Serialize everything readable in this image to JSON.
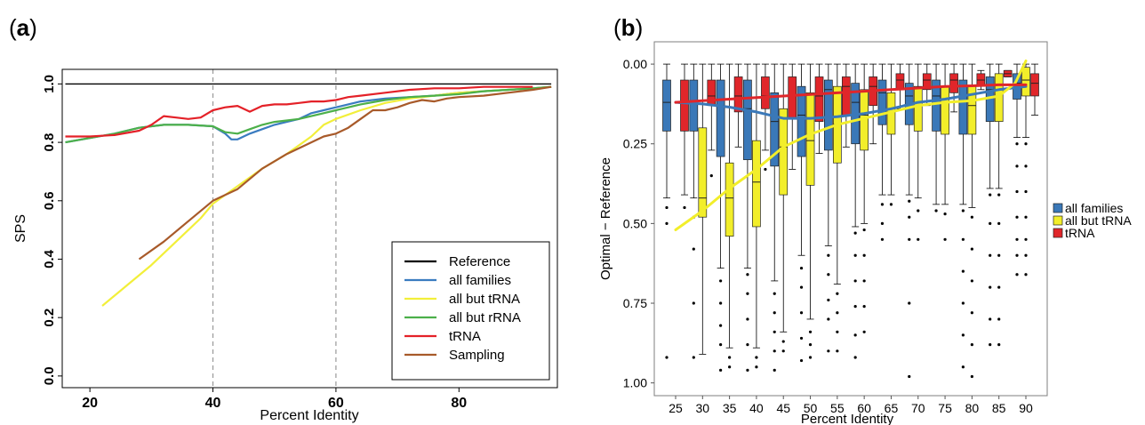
{
  "panels": [
    {
      "letter": "a",
      "open": "(",
      "close": ")"
    },
    {
      "letter": "b",
      "open": "(",
      "close": ")"
    }
  ],
  "colors": {
    "reference": "#000000",
    "all_families": "#3a7cc0",
    "all_but_trna": "#f2ef3a",
    "all_but_rrna": "#4cb04a",
    "trna": "#e42128",
    "sampling": "#a85a2a",
    "box_blue": "#3a78b8",
    "box_yellow": "#f2ee2a",
    "box_red": "#e0262a",
    "vline": "#999999"
  },
  "chart_data": [
    {
      "type": "line",
      "panel": "a",
      "xlabel": "Percent Identity",
      "ylabel": "SPS",
      "xlim": [
        15.5,
        96
      ],
      "ylim": [
        -0.04,
        1.05
      ],
      "xticks": [
        20,
        40,
        60,
        80
      ],
      "yticks": [
        0.0,
        0.2,
        0.4,
        0.6,
        0.8,
        1.0
      ],
      "ytick_labels": [
        "0.0",
        "0.2",
        "0.4",
        "0.6",
        "0.8",
        "1.0"
      ],
      "vlines": [
        40,
        60
      ],
      "legend_position": "bottom-right",
      "series": [
        {
          "name": "Reference",
          "color_key": "reference",
          "x": [
            16,
            95
          ],
          "y": [
            1.0,
            1.0
          ]
        },
        {
          "name": "all families",
          "color_key": "all_families",
          "x": [
            16,
            20,
            24,
            28,
            32,
            36,
            40,
            42,
            43,
            44,
            46,
            48,
            50,
            52,
            54,
            56,
            58,
            60,
            64,
            68,
            72,
            76,
            80,
            84,
            88,
            92,
            95
          ],
          "y": [
            0.8,
            0.815,
            0.83,
            0.85,
            0.86,
            0.86,
            0.855,
            0.83,
            0.81,
            0.81,
            0.83,
            0.845,
            0.86,
            0.87,
            0.88,
            0.9,
            0.91,
            0.92,
            0.94,
            0.95,
            0.955,
            0.96,
            0.97,
            0.975,
            0.98,
            0.985,
            0.99
          ]
        },
        {
          "name": "all but tRNA",
          "color_key": "all_but_trna",
          "x": [
            22,
            26,
            30,
            34,
            38,
            40,
            44,
            48,
            52,
            56,
            58,
            60,
            64,
            68,
            72,
            76,
            80,
            84,
            88,
            92,
            95
          ],
          "y": [
            0.24,
            0.31,
            0.38,
            0.46,
            0.54,
            0.59,
            0.65,
            0.71,
            0.76,
            0.82,
            0.86,
            0.88,
            0.91,
            0.935,
            0.95,
            0.96,
            0.97,
            0.975,
            0.98,
            0.985,
            0.99
          ]
        },
        {
          "name": "all but rRNA",
          "color_key": "all_but_rrna",
          "x": [
            16,
            20,
            24,
            28,
            32,
            36,
            40,
            42,
            44,
            46,
            48,
            50,
            52,
            54,
            56,
            58,
            60,
            64,
            68,
            72,
            76,
            80,
            84,
            88,
            92,
            95
          ],
          "y": [
            0.8,
            0.815,
            0.83,
            0.85,
            0.86,
            0.86,
            0.855,
            0.835,
            0.83,
            0.845,
            0.86,
            0.87,
            0.875,
            0.88,
            0.89,
            0.9,
            0.91,
            0.93,
            0.945,
            0.955,
            0.96,
            0.965,
            0.975,
            0.98,
            0.985,
            0.99
          ]
        },
        {
          "name": "tRNA",
          "color_key": "trna",
          "x": [
            16,
            20,
            24,
            28,
            30,
            32,
            34,
            36,
            38,
            40,
            42,
            44,
            46,
            48,
            50,
            52,
            54,
            56,
            58,
            60,
            62,
            64,
            68,
            72,
            76,
            80,
            84,
            88,
            92
          ],
          "y": [
            0.82,
            0.82,
            0.825,
            0.84,
            0.86,
            0.89,
            0.885,
            0.88,
            0.885,
            0.91,
            0.92,
            0.925,
            0.905,
            0.925,
            0.93,
            0.93,
            0.935,
            0.94,
            0.94,
            0.945,
            0.955,
            0.96,
            0.97,
            0.98,
            0.985,
            0.985,
            0.99,
            0.99,
            0.99
          ]
        },
        {
          "name": "Sampling",
          "color_key": "sampling",
          "x": [
            28,
            32,
            36,
            40,
            44,
            48,
            52,
            56,
            58,
            60,
            62,
            64,
            66,
            68,
            70,
            72,
            74,
            76,
            78,
            80,
            84,
            88,
            92,
            95
          ],
          "y": [
            0.4,
            0.46,
            0.53,
            0.6,
            0.64,
            0.71,
            0.76,
            0.8,
            0.82,
            0.83,
            0.85,
            0.88,
            0.91,
            0.91,
            0.92,
            0.935,
            0.945,
            0.94,
            0.95,
            0.955,
            0.96,
            0.97,
            0.98,
            0.99
          ]
        }
      ]
    },
    {
      "type": "box",
      "panel": "b",
      "xlabel": "Percent Identity",
      "ylabel": "Optimal − Reference",
      "ylim": [
        1.04,
        -0.07
      ],
      "yticks": [
        0.0,
        0.25,
        0.5,
        0.75,
        1.0
      ],
      "ytick_labels": [
        "0.00",
        "0.25",
        "0.50",
        "0.75",
        "1.00"
      ],
      "categories": [
        "25",
        "30",
        "35",
        "40",
        "45",
        "50",
        "55",
        "60",
        "65",
        "70",
        "75",
        "80",
        "85",
        "90"
      ],
      "legend_position": "right",
      "series": [
        {
          "name": "all families",
          "color_key": "box_blue",
          "boxes": [
            {
              "q1": 0.05,
              "med": 0.12,
              "q3": 0.21,
              "wlo": 0.0,
              "whi": 0.42,
              "out": [
                0.45,
                0.5,
                0.92
              ]
            },
            {
              "q1": 0.05,
              "med": 0.12,
              "q3": 0.21,
              "wlo": 0.0,
              "whi": 0.42,
              "out": [
                0.48,
                0.58,
                0.75,
                0.92
              ]
            },
            {
              "q1": 0.05,
              "med": 0.13,
              "q3": 0.29,
              "wlo": 0.0,
              "whi": 0.64,
              "out": [
                0.68,
                0.75,
                0.82,
                0.88,
                0.96
              ]
            },
            {
              "q1": 0.05,
              "med": 0.14,
              "q3": 0.3,
              "wlo": 0.0,
              "whi": 0.64,
              "out": [
                0.66,
                0.72,
                0.8,
                0.88,
                0.96
              ]
            },
            {
              "q1": 0.09,
              "med": 0.18,
              "q3": 0.32,
              "wlo": 0.0,
              "whi": 0.68,
              "out": [
                0.72,
                0.78,
                0.84,
                0.9,
                0.96
              ]
            },
            {
              "q1": 0.07,
              "med": 0.16,
              "q3": 0.29,
              "wlo": 0.0,
              "whi": 0.6,
              "out": [
                0.64,
                0.7,
                0.78,
                0.86,
                0.93
              ]
            },
            {
              "q1": 0.05,
              "med": 0.08,
              "q3": 0.27,
              "wlo": 0.0,
              "whi": 0.57,
              "out": [
                0.6,
                0.66,
                0.74,
                0.8,
                0.9
              ]
            },
            {
              "q1": 0.06,
              "med": 0.12,
              "q3": 0.25,
              "wlo": 0.0,
              "whi": 0.51,
              "out": [
                0.53,
                0.6,
                0.68,
                0.76,
                0.85,
                0.92
              ]
            },
            {
              "q1": 0.05,
              "med": 0.09,
              "q3": 0.19,
              "wlo": 0.0,
              "whi": 0.41,
              "out": [
                0.44,
                0.5,
                0.55
              ]
            },
            {
              "q1": 0.06,
              "med": 0.1,
              "q3": 0.19,
              "wlo": 0.0,
              "whi": 0.41,
              "out": [
                0.43,
                0.48,
                0.55,
                0.75,
                0.98
              ]
            },
            {
              "q1": 0.05,
              "med": 0.1,
              "q3": 0.21,
              "wlo": 0.0,
              "whi": 0.44,
              "out": [
                0.46
              ]
            },
            {
              "q1": 0.05,
              "med": 0.1,
              "q3": 0.22,
              "wlo": 0.0,
              "whi": 0.44,
              "out": [
                0.46,
                0.55,
                0.65,
                0.75,
                0.85,
                0.95
              ]
            },
            {
              "q1": 0.04,
              "med": 0.08,
              "q3": 0.18,
              "wlo": 0.0,
              "whi": 0.39,
              "out": [
                0.41,
                0.5,
                0.6,
                0.7,
                0.8,
                0.88
              ]
            },
            {
              "q1": 0.03,
              "med": 0.06,
              "q3": 0.11,
              "wlo": 0.0,
              "whi": 0.23,
              "out": [
                0.25,
                0.32,
                0.4,
                0.48,
                0.55,
                0.6,
                0.66
              ]
            }
          ]
        },
        {
          "name": "all but tRNA",
          "color_key": "box_yellow",
          "boxes": [
            null,
            {
              "q1": 0.2,
              "med": 0.42,
              "q3": 0.48,
              "wlo": 0.0,
              "whi": 0.91,
              "out": []
            },
            {
              "q1": 0.31,
              "med": 0.42,
              "q3": 0.54,
              "wlo": 0.0,
              "whi": 0.89,
              "out": [
                0.92,
                0.95
              ]
            },
            {
              "q1": 0.24,
              "med": 0.37,
              "q3": 0.51,
              "wlo": 0.0,
              "whi": 0.89,
              "out": [
                0.92,
                0.95
              ]
            },
            {
              "q1": 0.14,
              "med": 0.26,
              "q3": 0.41,
              "wlo": 0.0,
              "whi": 0.84,
              "out": [
                0.87,
                0.9
              ]
            },
            {
              "q1": 0.09,
              "med": 0.24,
              "q3": 0.38,
              "wlo": 0.0,
              "whi": 0.8,
              "out": [
                0.84,
                0.88,
                0.92
              ]
            },
            {
              "q1": 0.07,
              "med": 0.19,
              "q3": 0.31,
              "wlo": 0.0,
              "whi": 0.69,
              "out": [
                0.72,
                0.78,
                0.84,
                0.9
              ]
            },
            {
              "q1": 0.08,
              "med": 0.16,
              "q3": 0.27,
              "wlo": 0.0,
              "whi": 0.5,
              "out": [
                0.52,
                0.6,
                0.68,
                0.76,
                0.84
              ]
            },
            {
              "q1": 0.09,
              "med": 0.15,
              "q3": 0.22,
              "wlo": 0.0,
              "whi": 0.41,
              "out": [
                0.44
              ]
            },
            {
              "q1": 0.07,
              "med": 0.12,
              "q3": 0.21,
              "wlo": 0.0,
              "whi": 0.42,
              "out": [
                0.46,
                0.55
              ]
            },
            {
              "q1": 0.07,
              "med": 0.12,
              "q3": 0.22,
              "wlo": 0.0,
              "whi": 0.44,
              "out": [
                0.47,
                0.55
              ]
            },
            {
              "q1": 0.07,
              "med": 0.13,
              "q3": 0.22,
              "wlo": 0.0,
              "whi": 0.45,
              "out": [
                0.48,
                0.58,
                0.68,
                0.78,
                0.88,
                0.98
              ]
            },
            {
              "q1": 0.03,
              "med": 0.08,
              "q3": 0.18,
              "wlo": 0.0,
              "whi": 0.39,
              "out": [
                0.41,
                0.5,
                0.6,
                0.7,
                0.8,
                0.88
              ]
            },
            {
              "q1": 0.01,
              "med": 0.05,
              "q3": 0.1,
              "wlo": 0.0,
              "whi": 0.23,
              "out": [
                0.25,
                0.32,
                0.4,
                0.48,
                0.55,
                0.6,
                0.66
              ]
            }
          ]
        },
        {
          "name": "tRNA",
          "color_key": "box_red",
          "boxes": [
            {
              "q1": 0.05,
              "med": 0.12,
              "q3": 0.21,
              "wlo": 0.0,
              "whi": 0.41,
              "out": [
                0.45
              ]
            },
            {
              "q1": 0.05,
              "med": 0.1,
              "q3": 0.13,
              "wlo": 0.0,
              "whi": 0.27,
              "out": [
                0.35
              ]
            },
            {
              "q1": 0.04,
              "med": 0.1,
              "q3": 0.15,
              "wlo": 0.0,
              "whi": 0.26,
              "out": []
            },
            {
              "q1": 0.04,
              "med": 0.1,
              "q3": 0.14,
              "wlo": 0.0,
              "whi": 0.27,
              "out": [
                0.33
              ]
            },
            {
              "q1": 0.04,
              "med": 0.1,
              "q3": 0.17,
              "wlo": 0.0,
              "whi": 0.33,
              "out": []
            },
            {
              "q1": 0.04,
              "med": 0.1,
              "q3": 0.18,
              "wlo": 0.0,
              "whi": 0.28,
              "out": []
            },
            {
              "q1": 0.04,
              "med": 0.07,
              "q3": 0.16,
              "wlo": 0.0,
              "whi": 0.26,
              "out": []
            },
            {
              "q1": 0.04,
              "med": 0.07,
              "q3": 0.13,
              "wlo": 0.0,
              "whi": 0.25,
              "out": []
            },
            {
              "q1": 0.03,
              "med": 0.05,
              "q3": 0.08,
              "wlo": 0.0,
              "whi": 0.14,
              "out": []
            },
            {
              "q1": 0.03,
              "med": 0.05,
              "q3": 0.08,
              "wlo": 0.0,
              "whi": 0.13,
              "out": []
            },
            {
              "q1": 0.03,
              "med": 0.05,
              "q3": 0.09,
              "wlo": 0.0,
              "whi": 0.15,
              "out": []
            },
            {
              "q1": 0.03,
              "med": 0.05,
              "q3": 0.07,
              "wlo": 0.02,
              "whi": 0.08,
              "out": []
            },
            {
              "q1": 0.02,
              "med": 0.03,
              "q3": 0.04,
              "wlo": 0.02,
              "whi": 0.04,
              "out": []
            },
            {
              "q1": 0.03,
              "med": 0.06,
              "q3": 0.1,
              "wlo": 0.0,
              "whi": 0.16,
              "out": []
            }
          ]
        }
      ],
      "trend_lines": [
        {
          "name": "all families",
          "color_key": "box_blue",
          "x": [
            25,
            30,
            35,
            40,
            45,
            50,
            55,
            60,
            65,
            70,
            75,
            80,
            85,
            90
          ],
          "y": [
            0.12,
            0.125,
            0.135,
            0.15,
            0.17,
            0.17,
            0.165,
            0.155,
            0.14,
            0.12,
            0.11,
            0.095,
            0.08,
            0.07
          ]
        },
        {
          "name": "all but tRNA",
          "color_key": "box_yellow",
          "x": [
            25,
            30,
            35,
            40,
            45,
            50,
            55,
            60,
            65,
            70,
            75,
            80,
            85,
            88,
            90
          ],
          "y": [
            0.52,
            0.46,
            0.39,
            0.33,
            0.26,
            0.22,
            0.19,
            0.17,
            0.15,
            0.13,
            0.12,
            0.115,
            0.1,
            0.06,
            -0.01
          ]
        },
        {
          "name": "tRNA",
          "color_key": "box_red",
          "x": [
            25,
            30,
            35,
            40,
            45,
            50,
            55,
            60,
            65,
            70,
            75,
            80,
            85,
            90
          ],
          "y": [
            0.12,
            0.115,
            0.11,
            0.105,
            0.1,
            0.095,
            0.09,
            0.085,
            0.08,
            0.075,
            0.07,
            0.068,
            0.065,
            0.065
          ]
        }
      ]
    }
  ]
}
